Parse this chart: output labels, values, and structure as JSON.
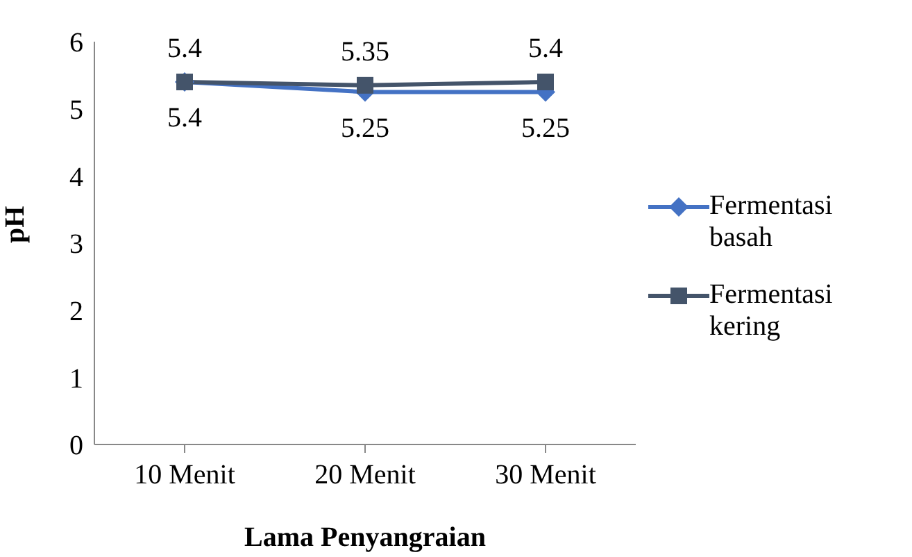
{
  "chart_data": {
    "type": "line",
    "xlabel": "Lama Penyangraian",
    "ylabel": "pH",
    "categories": [
      "10 Menit",
      "20 Menit",
      "30 Menit"
    ],
    "series": [
      {
        "name": "Fermentasi basah",
        "color": "#4472c4",
        "marker": "diamond",
        "values": [
          5.4,
          5.25,
          5.25
        ]
      },
      {
        "name": "Fermentasi kering",
        "color": "#44546a",
        "marker": "square",
        "values": [
          5.4,
          5.35,
          5.4
        ]
      }
    ],
    "ylim": [
      0,
      6
    ],
    "yticks": [
      0,
      1,
      2,
      3,
      4,
      5,
      6
    ],
    "grid": false,
    "legend": "right",
    "data_labels": true
  }
}
